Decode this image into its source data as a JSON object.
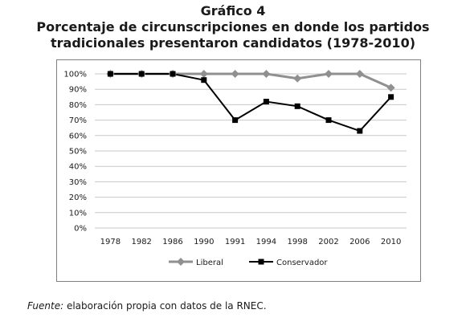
{
  "header": {
    "kicker": "Gráfico 4",
    "title_line1": "Porcentaje de circunscripciones en donde los partidos",
    "title_line2": "tradicionales presentaron candidatos (1978-2010)"
  },
  "source": {
    "label": "Fuente:",
    "text": " elaboración propia con datos de la RNEC."
  },
  "colors": {
    "liberal": "#909090",
    "conservador": "#000000",
    "grid": "#c8c8c8",
    "frame": "#808080"
  },
  "chart_data": {
    "type": "line",
    "categories": [
      "1978",
      "1982",
      "1986",
      "1990",
      "1991",
      "1994",
      "1998",
      "2002",
      "2006",
      "2010"
    ],
    "series": [
      {
        "name": "Liberal",
        "marker": "diamond",
        "values": [
          100,
          100,
          100,
          100,
          100,
          100,
          97,
          100,
          100,
          91
        ]
      },
      {
        "name": "Conservador",
        "marker": "square",
        "values": [
          100,
          100,
          100,
          96,
          70,
          82,
          79,
          70,
          63,
          85
        ]
      }
    ],
    "yticks": [
      "0%",
      "10%",
      "20%",
      "30%",
      "40%",
      "50%",
      "60%",
      "70%",
      "80%",
      "90%",
      "100%"
    ],
    "ylim": [
      0,
      100
    ],
    "grid": true,
    "legend_position": "bottom",
    "title": "",
    "xlabel": "",
    "ylabel": ""
  }
}
